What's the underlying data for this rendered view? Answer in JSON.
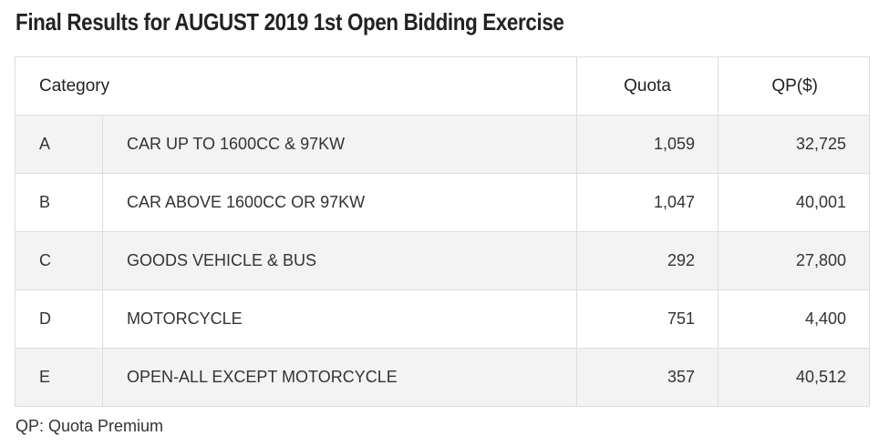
{
  "title": "Final Results for AUGUST 2019 1st Open Bidding Exercise",
  "table": {
    "headers": {
      "category": "Category",
      "quota": "Quota",
      "qp": "QP($)"
    },
    "rows": [
      {
        "code": "A",
        "description": "CAR UP TO 1600CC & 97KW",
        "quota": "1,059",
        "qp": "32,725"
      },
      {
        "code": "B",
        "description": "CAR ABOVE 1600CC OR 97KW",
        "quota": "1,047",
        "qp": "40,001"
      },
      {
        "code": "C",
        "description": "GOODS VEHICLE & BUS",
        "quota": "292",
        "qp": "27,800"
      },
      {
        "code": "D",
        "description": "MOTORCYCLE",
        "quota": "751",
        "qp": "4,400"
      },
      {
        "code": "E",
        "description": "OPEN-ALL EXCEPT MOTORCYCLE",
        "quota": "357",
        "qp": "40,512"
      }
    ]
  },
  "footnote": "QP: Quota Premium"
}
